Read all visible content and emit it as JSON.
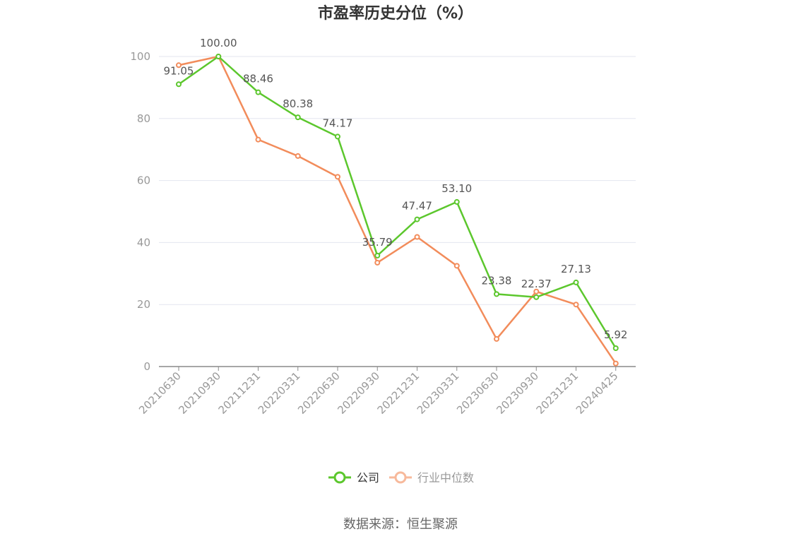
{
  "chart_data": {
    "type": "line",
    "title": "市盈率历史分位（%）",
    "categories": [
      "20210630",
      "20210930",
      "20211231",
      "20220331",
      "20220630",
      "20220930",
      "20221231",
      "20230331",
      "20230630",
      "20230930",
      "20231231",
      "20240425"
    ],
    "ylim": [
      0,
      100
    ],
    "yticks": [
      0,
      20,
      40,
      60,
      80,
      100
    ],
    "grid": true,
    "legend_position": "bottom-center",
    "series": [
      {
        "name": "公司",
        "color": "#5cc72d",
        "values": [
          91.05,
          100.0,
          88.46,
          80.38,
          74.17,
          35.79,
          47.47,
          53.1,
          23.38,
          22.37,
          27.13,
          5.92
        ],
        "labels": [
          "91.05",
          "100.00",
          "88.46",
          "80.38",
          "74.17",
          "35.79",
          "47.47",
          "53.10",
          "23.38",
          "22.37",
          "27.13",
          "5.92"
        ]
      },
      {
        "name": "行业中位数",
        "color": "#f28c5b",
        "legend_color": "#f7b99b",
        "values": [
          97.2,
          100.0,
          73.2,
          67.9,
          61.2,
          33.5,
          41.8,
          32.5,
          8.9,
          24.2,
          20.0,
          1.0
        ]
      }
    ],
    "source": "数据来源：恒生聚源"
  }
}
